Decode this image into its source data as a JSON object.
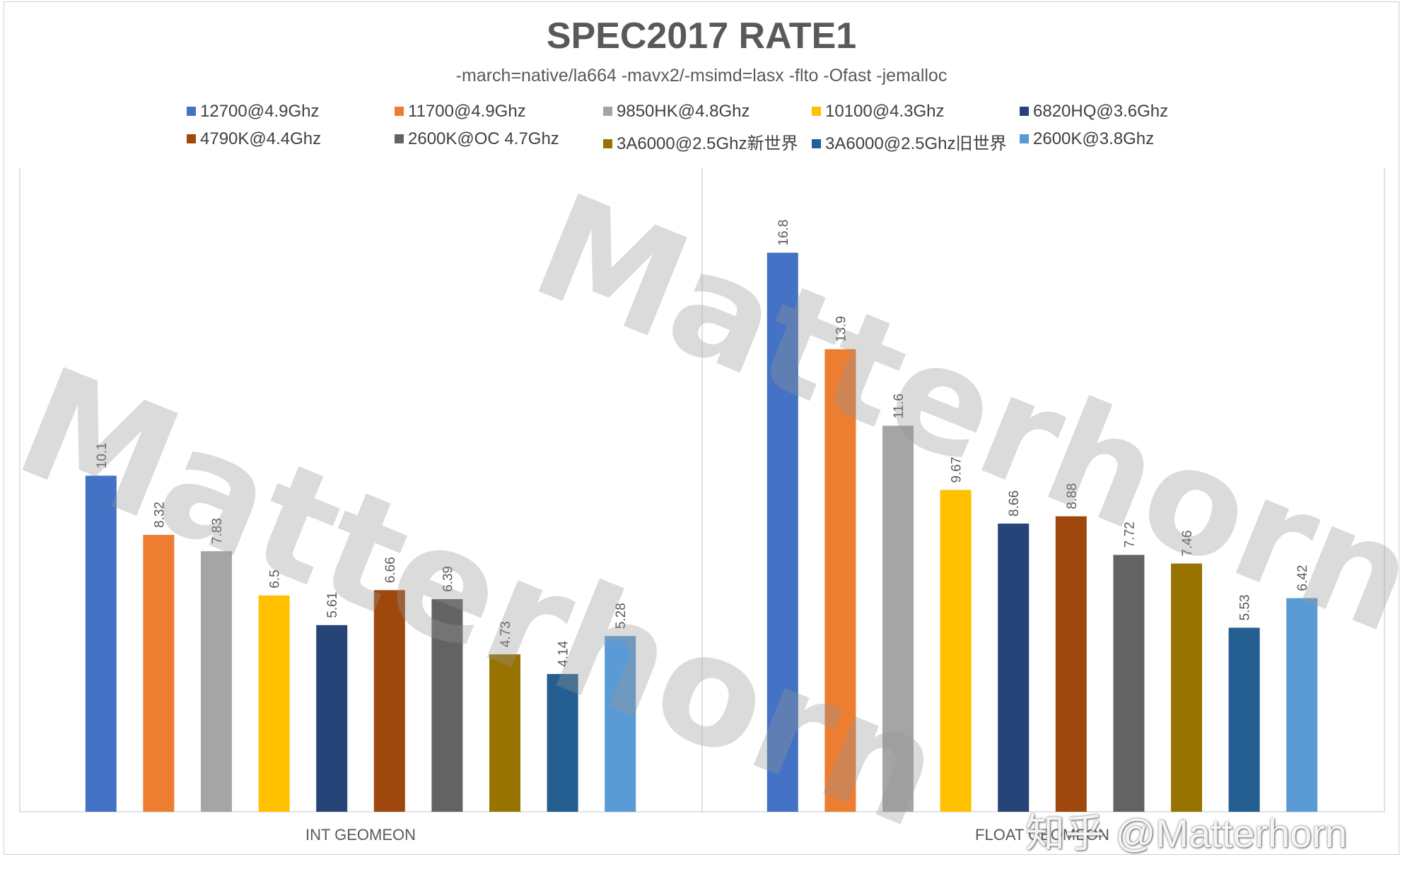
{
  "watermark_text": "Matterhorn",
  "credit_text": "知乎 @Matterhorn",
  "colors": {
    "title": "#595959",
    "axis": "#d9d9d9",
    "label": "#595959",
    "watermark": "#969696"
  },
  "chart_data": {
    "type": "bar",
    "title": "SPEC2017 RATE1",
    "subtitle": "-march=native/la664 -mavx2/-msimd=lasx -flto -Ofast -jemalloc",
    "categories": [
      "INT GEOMEON",
      "FLOAT GEOMEON"
    ],
    "ylim": [
      0,
      18
    ],
    "grid": false,
    "legend_position": "top",
    "data_labels": true,
    "series": [
      {
        "name": "12700@4.9Ghz",
        "color": "#4472c4",
        "values": [
          10.1,
          16.8
        ],
        "value_labels": [
          "10.1",
          "16.8"
        ]
      },
      {
        "name": "11700@4.9Ghz",
        "color": "#ed7d31",
        "values": [
          8.32,
          13.9
        ],
        "value_labels": [
          "8.32",
          "13.9"
        ]
      },
      {
        "name": "9850HK@4.8Ghz",
        "color": "#a5a5a5",
        "values": [
          7.83,
          11.6
        ],
        "value_labels": [
          "7.83",
          "11.6"
        ]
      },
      {
        "name": "10100@4.3Ghz",
        "color": "#ffc000",
        "values": [
          6.5,
          9.67
        ],
        "value_labels": [
          "6.5",
          "9.67"
        ]
      },
      {
        "name": "6820HQ@3.6Ghz",
        "color": "#264478",
        "values": [
          5.61,
          8.66
        ],
        "value_labels": [
          "5.61",
          "8.66"
        ]
      },
      {
        "name": "4790K@4.4Ghz",
        "color": "#9e480e",
        "values": [
          6.66,
          8.88
        ],
        "value_labels": [
          "6.66",
          "8.88"
        ]
      },
      {
        "name": "2600K@OC 4.7Ghz",
        "color": "#636363",
        "values": [
          6.39,
          7.72
        ],
        "value_labels": [
          "6.39",
          "7.72"
        ]
      },
      {
        "name": "3A6000@2.5Ghz新世界",
        "color": "#997300",
        "values": [
          4.73,
          7.46
        ],
        "value_labels": [
          "4.73",
          "7.46"
        ]
      },
      {
        "name": "3A6000@2.5Ghz旧世界",
        "color": "#255e91",
        "values": [
          4.14,
          5.53
        ],
        "value_labels": [
          "4.14",
          "5.53"
        ]
      },
      {
        "name": "2600K@3.8Ghz",
        "color": "#5b9bd5",
        "values": [
          5.28,
          6.42
        ],
        "value_labels": [
          "5.28",
          "6.42"
        ]
      }
    ]
  }
}
